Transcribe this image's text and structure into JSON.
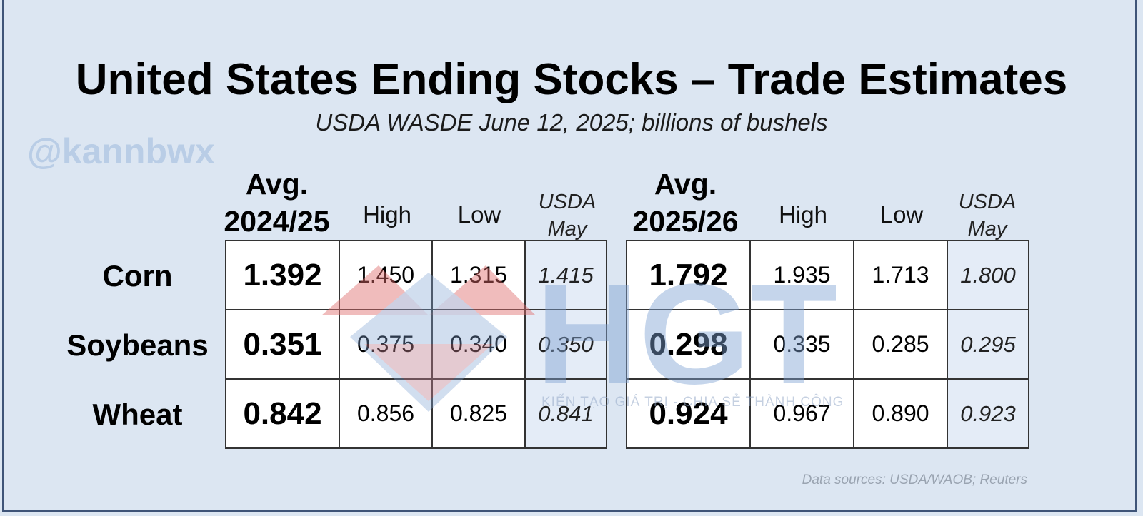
{
  "title": "United States Ending Stocks – Trade Estimates",
  "subtitle": "USDA WASDE June 12, 2025; billions of bushels",
  "watermark_handle": "@kannbwx",
  "logo_watermark": {
    "text": "HGT",
    "tagline": "KIẾN TẠO GIÁ TRỊ - CHIA SẺ THÀNH CÔNG"
  },
  "source": "Data sources: USDA/WAOB; Reuters",
  "headers": {
    "avg": "Avg.",
    "year_2425": "2024/25",
    "year_2526": "2025/26",
    "high": "High",
    "low": "Low",
    "usda": "USDA",
    "may": "May"
  },
  "rows": [
    {
      "label": "Corn",
      "y2425": {
        "avg": "1.392",
        "high": "1.450",
        "low": "1.315",
        "usda_may": "1.415"
      },
      "y2526": {
        "avg": "1.792",
        "high": "1.935",
        "low": "1.713",
        "usda_may": "1.800"
      }
    },
    {
      "label": "Soybeans",
      "y2425": {
        "avg": "0.351",
        "high": "0.375",
        "low": "0.340",
        "usda_may": "0.350"
      },
      "y2526": {
        "avg": "0.298",
        "high": "0.335",
        "low": "0.285",
        "usda_may": "0.295"
      }
    },
    {
      "label": "Wheat",
      "y2425": {
        "avg": "0.842",
        "high": "0.856",
        "low": "0.825",
        "usda_may": "0.841"
      },
      "y2526": {
        "avg": "0.924",
        "high": "0.967",
        "low": "0.890",
        "usda_may": "0.923"
      }
    }
  ],
  "colors": {
    "background": "#dce6f2",
    "frame": "#3f5478",
    "usda_cell": "#e4ecf7",
    "logo_red": "#e06c6c",
    "logo_blue": "#7fa3d3"
  }
}
